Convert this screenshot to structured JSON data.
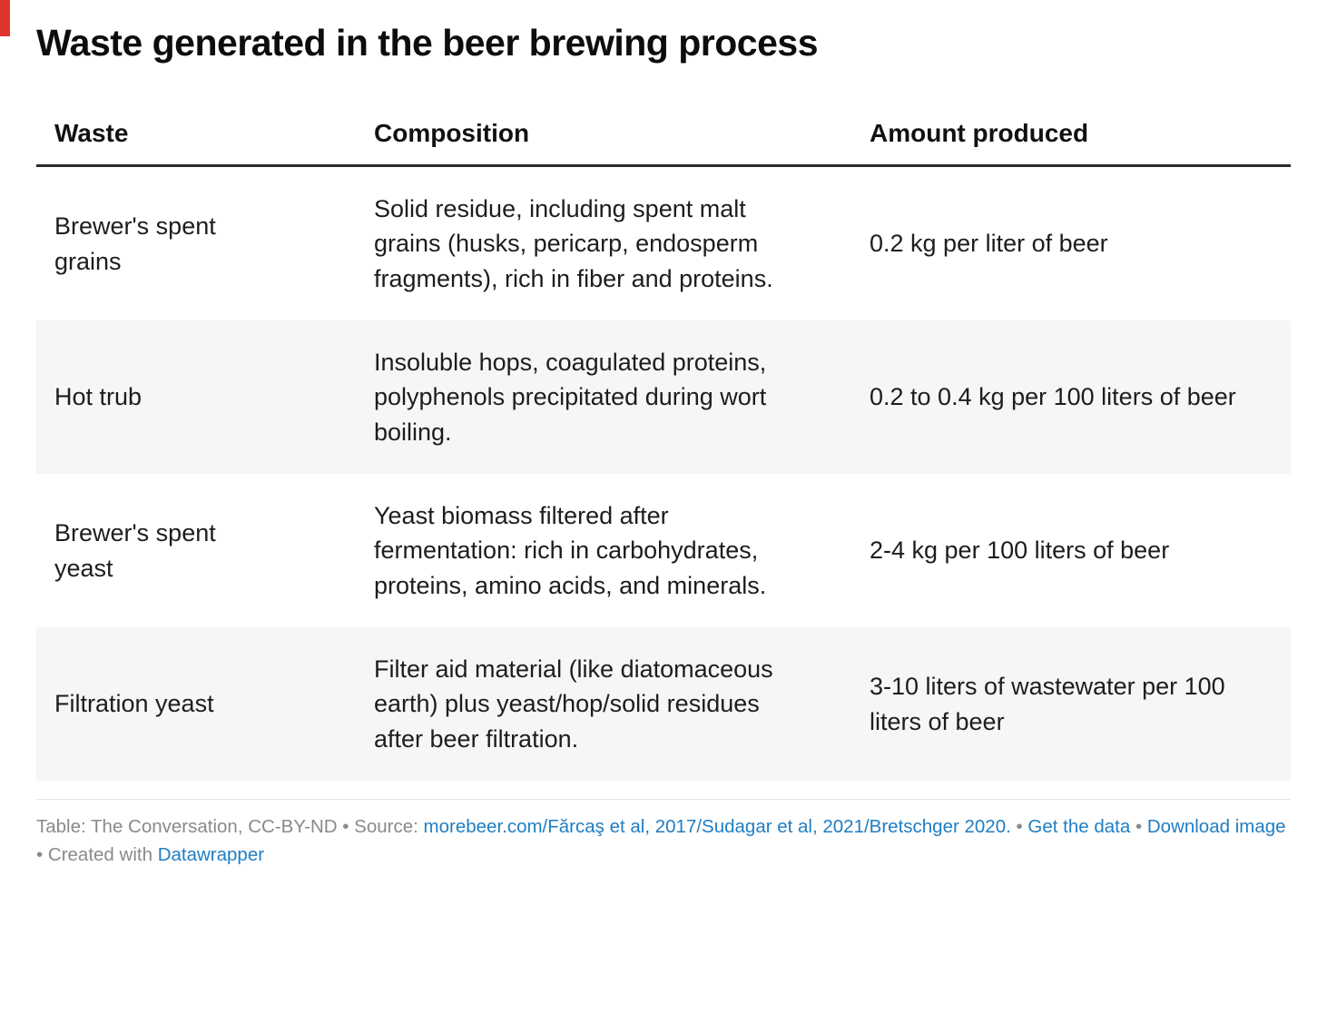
{
  "title": "Waste generated in the beer brewing process",
  "chart_data": {
    "type": "table",
    "title": "Waste generated in the beer brewing process",
    "columns": [
      "Waste",
      "Composition",
      "Amount produced"
    ],
    "rows": [
      [
        "Brewer's spent grains",
        "Solid residue, including spent malt grains (husks, pericarp, endosperm fragments), rich in fiber and proteins.",
        "0.2 kg per liter of beer"
      ],
      [
        "Hot trub",
        "Insoluble hops, coagulated proteins, polyphenols precipitated during wort boiling.",
        "0.2 to 0.4 kg per 100 liters of beer"
      ],
      [
        "Brewer's spent yeast",
        "Yeast biomass filtered after fermentation: rich in carbohydrates, proteins, amino acids, and minerals.",
        "2-4 kg per 100 liters of beer"
      ],
      [
        "Filtration yeast",
        "Filter aid material (like diatomaceous earth) plus yeast/hop/solid residues after beer filtration.",
        "3-10 liters of wastewater per 100 liters of beer"
      ]
    ],
    "layout": {
      "striped_row_indexes": [
        1,
        3
      ],
      "stripe_color": "#f6f6f6",
      "header_rule_color": "#2b2b2b",
      "legend": "none",
      "grid": "off"
    }
  },
  "footer": {
    "table_credit": "Table: The Conversation, CC-BY-ND",
    "bullet": "•",
    "source_label": "Source:",
    "source_link": "morebeer.com/Fărcaş et al, 2017/Sudagar et al, 2021/Bretschger 2020.",
    "get_data_link": "Get the data",
    "download_image_link": "Download image",
    "created_with": "Created with",
    "datawrapper_link": "Datawrapper",
    "link_color": "#1f7ec3",
    "text_color": "#8a8a8a"
  },
  "colors": {
    "brand_mark": "#e0352b",
    "title_text": "#0d0d0d",
    "body_text": "#1d1d1d"
  }
}
